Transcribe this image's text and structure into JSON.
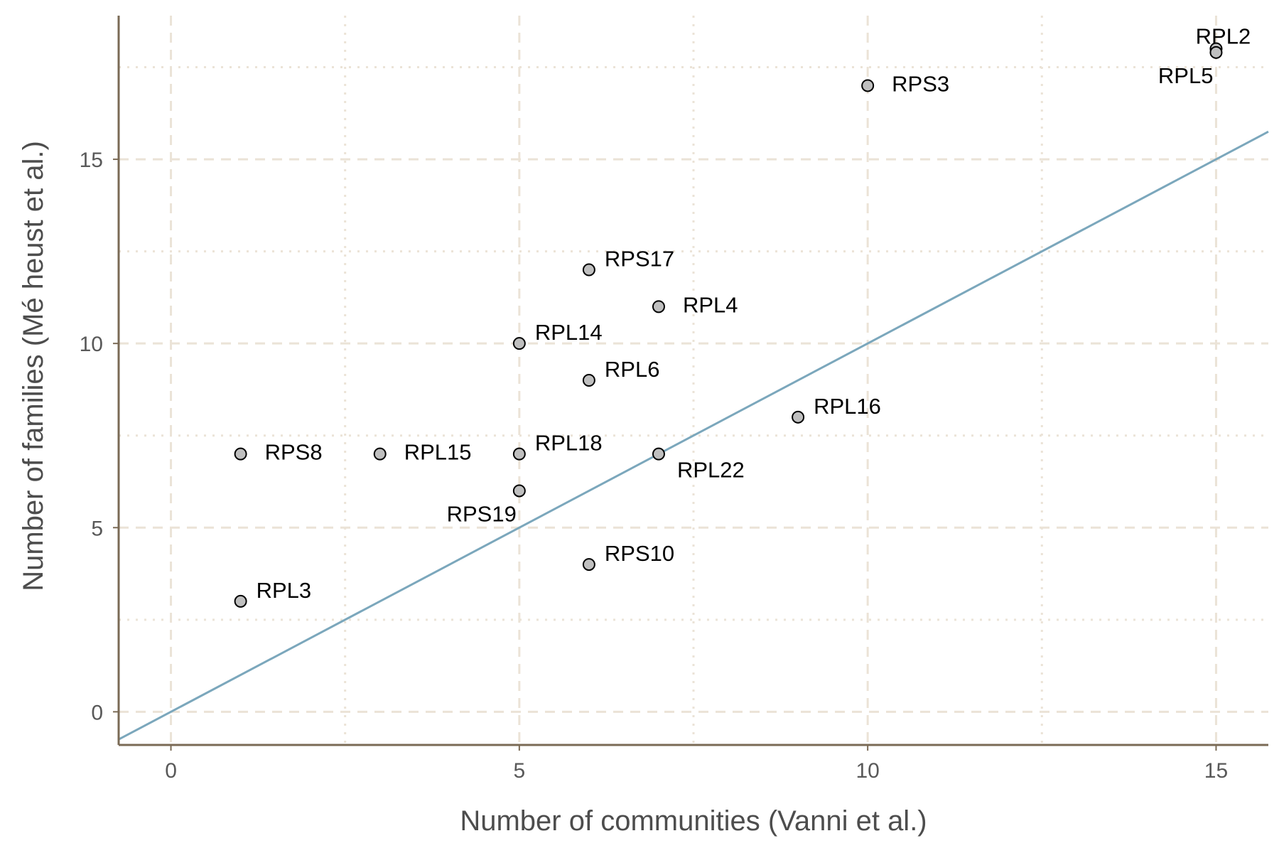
{
  "chart_data": {
    "type": "scatter",
    "xlabel": "Number of communities (Vanni et al.)",
    "ylabel": "Number of families (Mé heust et al.)",
    "xlim": [
      -0.75,
      15.75
    ],
    "ylim": [
      -0.9,
      18.9
    ],
    "x_ticks": [
      0,
      5,
      10,
      15
    ],
    "y_ticks": [
      0,
      5,
      10,
      15
    ],
    "x_tick_labels": [
      "0",
      "5",
      "10",
      "15"
    ],
    "y_tick_labels": [
      "0",
      "5",
      "10",
      "15"
    ],
    "grid": true,
    "reference_line": {
      "type": "identity",
      "slope": 1,
      "intercept": 0,
      "color": "#7ba7bc"
    },
    "colors": {
      "point_fill": "#bfbfbf",
      "point_stroke": "#000000",
      "axis": "#7a6a55",
      "grid": "#ebe3d7"
    },
    "points": [
      {
        "label": "RPL2",
        "x": 15,
        "y": 18,
        "label_pos": "above"
      },
      {
        "label": "RPL5",
        "x": 15,
        "y": 17.9,
        "label_pos": "below-left"
      },
      {
        "label": "RPS3",
        "x": 10,
        "y": 17,
        "label_pos": "right"
      },
      {
        "label": "RPS17",
        "x": 6,
        "y": 12,
        "label_pos": "right-up"
      },
      {
        "label": "RPL4",
        "x": 7,
        "y": 11,
        "label_pos": "right"
      },
      {
        "label": "RPL14",
        "x": 5,
        "y": 10,
        "label_pos": "right-up"
      },
      {
        "label": "RPL6",
        "x": 6,
        "y": 9,
        "label_pos": "right-up"
      },
      {
        "label": "RPL16",
        "x": 9,
        "y": 8,
        "label_pos": "right-up"
      },
      {
        "label": "RPS8",
        "x": 1,
        "y": 7,
        "label_pos": "right"
      },
      {
        "label": "RPL15",
        "x": 3,
        "y": 7,
        "label_pos": "right"
      },
      {
        "label": "RPL18",
        "x": 5,
        "y": 7,
        "label_pos": "right-up"
      },
      {
        "label": "RPL22",
        "x": 7,
        "y": 7,
        "label_pos": "right-down"
      },
      {
        "label": "RPS19",
        "x": 5,
        "y": 6,
        "label_pos": "below-left"
      },
      {
        "label": "RPS10",
        "x": 6,
        "y": 4,
        "label_pos": "right-up"
      },
      {
        "label": "RPL3",
        "x": 1,
        "y": 3,
        "label_pos": "right-up"
      }
    ]
  }
}
